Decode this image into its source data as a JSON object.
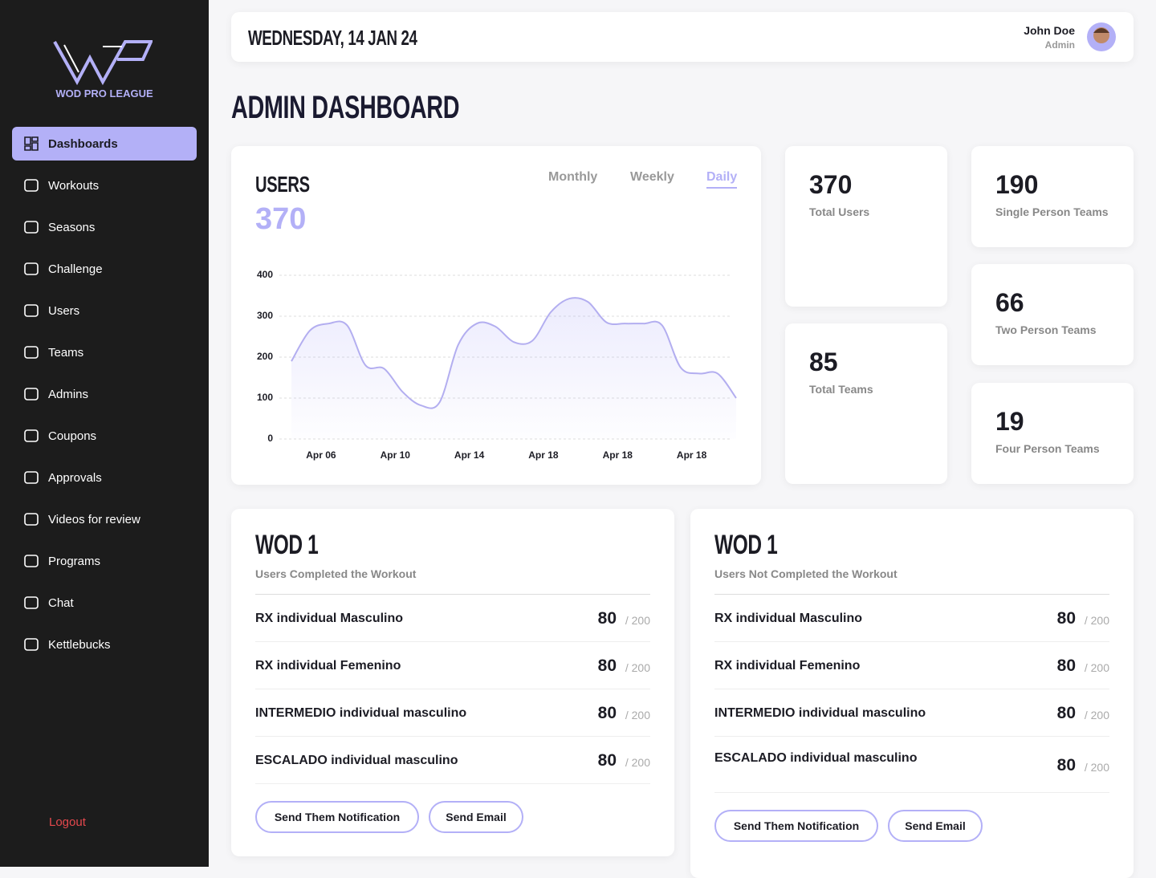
{
  "sidebar": {
    "brand": "WOD PRO LEAGUE",
    "nav": [
      "Dashboards",
      "Workouts",
      "Seasons",
      "Challenge",
      "Users",
      "Teams",
      "Admins",
      "Coupons",
      "Approvals",
      "Videos for review",
      "Programs",
      "Chat",
      "Kettlebucks"
    ],
    "logout": "Logout"
  },
  "header": {
    "date": "WEDNESDAY, 14 JAN 24",
    "user_name": "John Doe",
    "user_role": "Admin"
  },
  "page_title": "ADMIN DASHBOARD",
  "users_total": "370",
  "period_tabs": [
    "Monthly",
    "Weekly",
    "Daily"
  ],
  "chart_data": {
    "type": "line",
    "title": "USERS",
    "x": [
      0,
      1,
      2,
      3,
      4,
      5,
      6,
      7,
      8,
      9,
      10,
      11,
      12,
      13,
      14,
      15,
      16,
      17,
      18,
      19,
      20,
      21,
      22,
      23,
      24
    ],
    "series": [
      {
        "name": "Users",
        "color": "#b3aef0",
        "values": [
          190,
          265,
          282,
          278,
          180,
          172,
          115,
          82,
          90,
          230,
          282,
          275,
          237,
          240,
          310,
          343,
          335,
          285,
          282,
          282,
          278,
          175,
          160,
          160,
          100
        ]
      }
    ],
    "xlim": [
      0,
      24
    ],
    "xticks": [
      {
        "value": 1.6,
        "label": "Apr 06"
      },
      {
        "value": 5.6,
        "label": "Apr 10"
      },
      {
        "value": 9.6,
        "label": "Apr 14"
      },
      {
        "value": 13.6,
        "label": "Apr 18"
      },
      {
        "value": 17.6,
        "label": "Apr 18"
      },
      {
        "value": 21.6,
        "label": "Apr 18"
      }
    ],
    "ylim": [
      0,
      400
    ],
    "yticks": [
      0,
      100,
      200,
      300,
      400
    ],
    "grid": true
  },
  "stats": [
    {
      "value": "370",
      "label": "Total Users"
    },
    {
      "value": "85",
      "label": "Total Teams"
    },
    {
      "value": "190",
      "label": "Single Person Teams"
    },
    {
      "value": "66",
      "label": "Two Person Teams"
    },
    {
      "value": "19",
      "label": "Four Person Teams"
    }
  ],
  "wod_cards": [
    {
      "title": "WOD 1",
      "subtitle": "Users Completed the Workout",
      "rows": [
        {
          "name": "RX individual Masculino",
          "count": "80",
          "total": "/ 200"
        },
        {
          "name": "RX individual Femenino",
          "count": "80",
          "total": "/ 200"
        },
        {
          "name": "INTERMEDIO individual masculino",
          "count": "80",
          "total": "/ 200"
        },
        {
          "name": "ESCALADO individual masculino",
          "count": "80",
          "total": "/ 200"
        }
      ],
      "buttons": [
        "Send Them Notification",
        "Send Email"
      ]
    },
    {
      "title": "WOD 1",
      "subtitle": "Users Not Completed the Workout",
      "rows": [
        {
          "name": "RX individual Masculino",
          "count": "80",
          "total": "/ 200"
        },
        {
          "name": "RX individual Femenino",
          "count": "80",
          "total": "/ 200"
        },
        {
          "name": "INTERMEDIO individual masculino",
          "count": "80",
          "total": "/ 200"
        },
        {
          "name": "ESCALADO individual masculino",
          "count": "80",
          "total": "/ 200"
        }
      ],
      "buttons": [
        "Send Them Notification",
        "Send Email"
      ]
    }
  ]
}
